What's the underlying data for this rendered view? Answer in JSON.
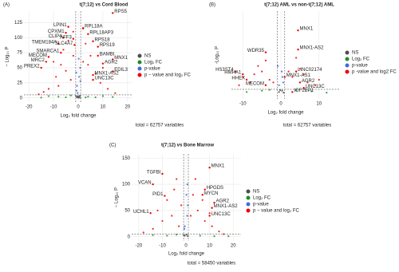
{
  "chart_data": [
    {
      "type": "scatter",
      "panel_label": "(A)",
      "title": "t(7;12) vs Cord Blood",
      "x_label": "Log₂ fold change",
      "y_label": "− Log₁₀ P",
      "caption": "total = 62757 variables",
      "xlim": [
        -22,
        22
      ],
      "ylim": [
        -7,
        144
      ],
      "xticks": [
        -20,
        -10,
        0,
        10,
        20
      ],
      "yticks": [
        0,
        25,
        50,
        75,
        100,
        125
      ],
      "grid": true,
      "legend": "right",
      "vlines": [
        -1,
        1
      ],
      "hline": 5,
      "series": [
        {
          "name": "NS",
          "color": "#4d4d4d",
          "x": [
            -0.5,
            0.3,
            0.8,
            -0.9,
            0.1,
            0.6,
            -0.3
          ],
          "y": [
            1,
            2,
            0.5,
            3,
            0.2,
            3.5,
            2.5
          ]
        },
        {
          "name": "Log₂ FC",
          "color": "#228b22",
          "x": [
            -8,
            -5,
            -12,
            4,
            7,
            10,
            -15,
            14,
            -3,
            3
          ],
          "y": [
            2,
            1,
            3,
            2,
            1,
            3,
            0.5,
            1.5,
            4,
            0.8
          ]
        },
        {
          "name": "p-value",
          "color": "#4169e1",
          "x": [
            -0.5,
            0.4,
            0.8,
            -0.7,
            0.2,
            -0.2,
            0.9,
            -0.8
          ],
          "y": [
            20,
            35,
            50,
            12,
            65,
            8,
            28,
            42
          ]
        },
        {
          "name": "p − value and log₂ FC",
          "color": "#ee0000",
          "x": [
            -3,
            -5,
            -8,
            -10,
            -12,
            -6,
            -4,
            -2,
            2,
            3,
            5,
            7,
            9,
            12,
            4,
            6,
            -14,
            -7,
            10,
            8,
            -9,
            2,
            -2,
            15,
            -16
          ],
          "y": [
            30,
            45,
            20,
            60,
            15,
            80,
            95,
            110,
            115,
            90,
            70,
            40,
            25,
            15,
            55,
            30,
            10,
            55,
            50,
            85,
            35,
            60,
            70,
            8,
            6
          ]
        }
      ],
      "labels": [
        {
          "gene": "RPS5",
          "x": 14,
          "y": 141
        },
        {
          "gene": "LPIN1",
          "x": -4,
          "y": 118
        },
        {
          "gene": "RPL18A",
          "x": 2,
          "y": 116
        },
        {
          "gene": "CPXM1",
          "x": -5,
          "y": 108
        },
        {
          "gene": "RPL18AP3",
          "x": 4,
          "y": 106
        },
        {
          "gene": "CLIP4",
          "x": -6,
          "y": 100
        },
        {
          "gene": "AFF3",
          "x": -2,
          "y": 98
        },
        {
          "gene": "RPS18",
          "x": 6,
          "y": 94
        },
        {
          "gene": "TMEM184A",
          "x": -8,
          "y": 90
        },
        {
          "gene": "SLC4A7",
          "x": -1.5,
          "y": 88
        },
        {
          "gene": "RPS19",
          "x": 8,
          "y": 85
        },
        {
          "gene": "SMARCA1",
          "x": -7,
          "y": 75
        },
        {
          "gene": "MECOM",
          "x": -12,
          "y": 68
        },
        {
          "gene": "BAMBI",
          "x": 8,
          "y": 70
        },
        {
          "gene": "MNX1",
          "x": 14,
          "y": 64
        },
        {
          "gene": "AGR2",
          "x": 10,
          "y": 57
        },
        {
          "gene": "MRC2",
          "x": -13,
          "y": 60
        },
        {
          "gene": "PREX2",
          "x": -15,
          "y": 50
        },
        {
          "gene": "EDIL3",
          "x": 14,
          "y": 44
        },
        {
          "gene": "MNX1-AS2",
          "x": 6,
          "y": 38
        },
        {
          "gene": "UNC13C",
          "x": 6,
          "y": 30
        }
      ]
    },
    {
      "type": "scatter",
      "panel_label": "(B)",
      "title": "t(7;12) AML vs non-t(7;12) AML",
      "x_label": "Log₂ fold change",
      "y_label": "-Log₁₀ P",
      "caption": "total = 62757 variables",
      "xlim": [
        -13,
        15.5
      ],
      "ylim": [
        -2,
        30
      ],
      "xticks": [
        -10,
        0,
        10
      ],
      "grid": true,
      "legend": "right",
      "vlines": [
        -1,
        1
      ],
      "hline": 1.5,
      "series": [
        {
          "name": "NS",
          "color": "#4d4d4d",
          "x": [
            -0.5,
            0.3,
            0.7,
            -0.2
          ],
          "y": [
            0.5,
            1,
            0.3,
            1.2
          ]
        },
        {
          "name": "Log₂ FC",
          "color": "#228b22",
          "x": [
            -5,
            -9,
            4,
            8,
            12,
            -3
          ],
          "y": [
            1,
            0.5,
            1.2,
            0.8,
            0.3,
            1.3
          ]
        },
        {
          "name": "p-value",
          "color": "#4169e1",
          "x": [
            -0.5,
            0.4,
            -0.8,
            0.6,
            0.2
          ],
          "y": [
            3,
            6,
            10,
            4,
            8
          ]
        },
        {
          "name": "p -value and log2 FC",
          "color": "#ee0000",
          "x": [
            -3,
            -5,
            -8,
            -10,
            -6,
            -4,
            3,
            5,
            7,
            9,
            4,
            6,
            -11,
            10,
            -2,
            2,
            -7
          ],
          "y": [
            5,
            8,
            4,
            6,
            10,
            12,
            6,
            9,
            4,
            3,
            13,
            7,
            3,
            5,
            4,
            8,
            7
          ]
        }
      ],
      "labels": [
        {
          "gene": "MNX1",
          "x": 4.5,
          "y": 23
        },
        {
          "gene": "MNX1-AS2",
          "x": 4.5,
          "y": 16
        },
        {
          "gene": "WDR35",
          "x": -4,
          "y": 15
        },
        {
          "gene": "HS3ST4",
          "x": -12,
          "y": 8
        },
        {
          "gene": "HMHA1",
          "x": -10,
          "y": 7
        },
        {
          "gene": "LINC02174",
          "x": 4,
          "y": 8
        },
        {
          "gene": "MNX1-AS1",
          "x": 1,
          "y": 6
        },
        {
          "gene": "HHEX",
          "x": -9,
          "y": 5
        },
        {
          "gene": "AGR2",
          "x": 5,
          "y": 4
        },
        {
          "gene": "MECOM",
          "x": -4,
          "y": 3
        },
        {
          "gene": "UNC13C",
          "x": 6,
          "y": 2
        },
        {
          "gene": "IGF2BP1",
          "x": 3,
          "y": 0.5
        }
      ]
    },
    {
      "type": "scatter",
      "panel_label": "(C)",
      "title": "t(7;12) vs Bone Marrow",
      "x_label": "Log₂ fold change",
      "y_label": "− Log₁₀ P",
      "caption": "total = 58450 variables",
      "xlim": [
        -23,
        23.3
      ],
      "ylim": [
        -8,
        158
      ],
      "xticks": [
        -20,
        -10,
        0,
        10,
        20
      ],
      "yticks": [
        0,
        50,
        100,
        150
      ],
      "grid": true,
      "legend": "right",
      "vlines": [
        -1,
        1
      ],
      "hline": 5,
      "series": [
        {
          "name": "NS",
          "color": "#4d4d4d",
          "x": [
            -0.5,
            0.3,
            0.8,
            -0.9
          ],
          "y": [
            2,
            4,
            1,
            3
          ]
        },
        {
          "name": "Log₂ FC",
          "color": "#228b22",
          "x": [
            -8,
            -14,
            6,
            12,
            -4,
            18
          ],
          "y": [
            2,
            3,
            2,
            1,
            4,
            1
          ]
        },
        {
          "name": "p-value",
          "color": "#4169e1",
          "x": [
            -0.5,
            0.5,
            0.8,
            -0.7,
            0.2,
            0.6
          ],
          "y": [
            20,
            40,
            60,
            15,
            80,
            100
          ]
        },
        {
          "name": "p − value and log₂ FC",
          "color": "#ee0000",
          "x": [
            -3,
            -6,
            -10,
            -14,
            -8,
            -5,
            -2,
            3,
            5,
            8,
            11,
            14,
            4,
            -4,
            7,
            -12,
            16,
            -18,
            10,
            2
          ],
          "y": [
            20,
            40,
            30,
            15,
            70,
            90,
            60,
            80,
            50,
            30,
            20,
            10,
            110,
            110,
            70,
            50,
            5,
            8,
            45,
            40
          ]
        }
      ],
      "labels": [
        {
          "gene": "MNX1",
          "x": 10,
          "y": 132
        },
        {
          "gene": "TGFBI",
          "x": -10,
          "y": 120
        },
        {
          "gene": "VCAN",
          "x": -14,
          "y": 100
        },
        {
          "gene": "HPGDS",
          "x": 8,
          "y": 90
        },
        {
          "gene": "MYCN",
          "x": 7,
          "y": 80
        },
        {
          "gene": "PID1",
          "x": -9,
          "y": 78
        },
        {
          "gene": "AGR2",
          "x": 12,
          "y": 65
        },
        {
          "gene": "MNX1-AS2",
          "x": 11,
          "y": 55
        },
        {
          "gene": "UCHL1",
          "x": -15,
          "y": 45
        },
        {
          "gene": "UNC13C",
          "x": 10,
          "y": 40
        }
      ]
    }
  ]
}
